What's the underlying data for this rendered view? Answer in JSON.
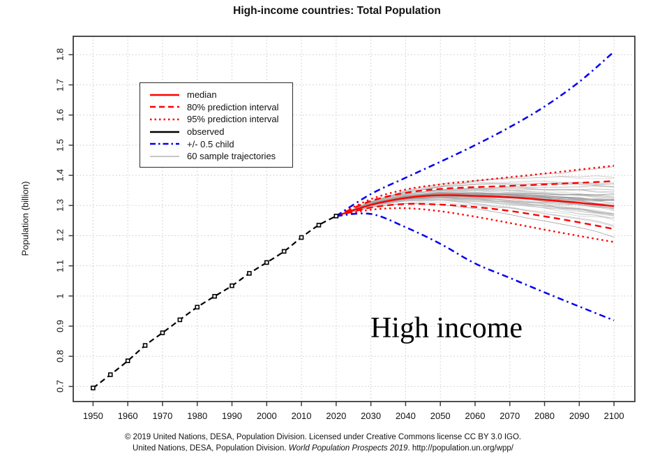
{
  "title": "High-income countries: Total Population",
  "annotation": "High income",
  "footer": {
    "line1": "© 2019 United Nations, DESA, Population Division. Licensed under Creative Commons license CC BY 3.0 IGO.",
    "line2_prefix": "United Nations, DESA, Population Division. ",
    "line2_italic": "World Population Prospects 2019",
    "line2_suffix": ". http://population.un.org/wpp/"
  },
  "legend": {
    "position": "top-left",
    "items": [
      {
        "label": "median",
        "color": "#ff0000",
        "dash": "",
        "width": 2.4
      },
      {
        "label": "80% prediction interval",
        "color": "#ff0000",
        "dash": "8,5",
        "width": 2.4
      },
      {
        "label": "95% prediction interval",
        "color": "#ff0000",
        "dash": "2.5,4",
        "width": 2.4
      },
      {
        "label": "observed",
        "color": "#000000",
        "dash": "",
        "width": 2.6
      },
      {
        "label": "+/- 0.5 child",
        "color": "#0000ee",
        "dash": "8,4,2.5,4",
        "width": 2.4
      },
      {
        "label": "60 sample trajectories",
        "color": "#b4b4b4",
        "dash": "",
        "width": 1.6
      }
    ]
  },
  "colors": {
    "median_red": "#ff0000",
    "half_child_blue": "#0000ee",
    "observed_black": "#000000",
    "trajectory_gray": "#9a9a9a",
    "grid_gray": "#c8c8c8",
    "frame_gray": "#3a3a3a"
  },
  "chart_data": {
    "type": "line",
    "title": "High-income countries: Total Population",
    "xlabel": "",
    "ylabel": "Population (billion)",
    "xlim": [
      1944.3,
      2106.0
    ],
    "ylim": [
      0.65,
      1.861
    ],
    "grid": true,
    "legend_position": "top-left",
    "x_ticks": [
      1950,
      1960,
      1970,
      1980,
      1990,
      2000,
      2010,
      2020,
      2030,
      2040,
      2050,
      2060,
      2070,
      2080,
      2090,
      2100
    ],
    "y_tick_labels": [
      "0.7",
      "0.8",
      "0.9",
      "1",
      "1.1",
      "1.2",
      "1.3",
      "1.4",
      "1.5",
      "1.6",
      "1.7",
      "1.8"
    ],
    "observed": {
      "name": "observed",
      "x_start": 1950,
      "x_step": 5,
      "values": [
        0.695,
        0.739,
        0.785,
        0.836,
        0.878,
        0.921,
        0.963,
        0.999,
        1.034,
        1.075,
        1.111,
        1.148,
        1.194,
        1.235,
        1.265
      ]
    },
    "projection_x": [
      2020,
      2030,
      2040,
      2050,
      2060,
      2070,
      2080,
      2090,
      2100
    ],
    "projection_series": [
      {
        "name": "median",
        "color": "#ff0000",
        "dash": "",
        "width": 2.4,
        "values": [
          1.265,
          1.302,
          1.325,
          1.334,
          1.332,
          1.327,
          1.319,
          1.309,
          1.298
        ]
      },
      {
        "name": "80% prediction interval upper",
        "color": "#ff0000",
        "dash": "9,6",
        "width": 2.4,
        "values": [
          1.265,
          1.315,
          1.342,
          1.355,
          1.361,
          1.365,
          1.37,
          1.375,
          1.381
        ]
      },
      {
        "name": "80% prediction interval lower",
        "color": "#ff0000",
        "dash": "9,6",
        "width": 2.4,
        "values": [
          1.265,
          1.293,
          1.305,
          1.303,
          1.295,
          1.282,
          1.264,
          1.244,
          1.222
        ]
      },
      {
        "name": "95% prediction interval upper",
        "color": "#ff0000",
        "dash": "2.5,4.5",
        "width": 2.4,
        "values": [
          1.265,
          1.321,
          1.353,
          1.37,
          1.382,
          1.394,
          1.406,
          1.419,
          1.432
        ]
      },
      {
        "name": "95% prediction interval lower",
        "color": "#ff0000",
        "dash": "2.5,4.5",
        "width": 2.4,
        "values": [
          1.265,
          1.286,
          1.291,
          1.281,
          1.263,
          1.242,
          1.22,
          1.199,
          1.179
        ]
      },
      {
        "name": "+0.5 child",
        "color": "#0000ee",
        "dash": "9,5,2.5,5",
        "width": 2.5,
        "values": [
          1.265,
          1.338,
          1.392,
          1.445,
          1.5,
          1.56,
          1.628,
          1.71,
          1.81
        ]
      },
      {
        "name": "-0.5 child",
        "color": "#0000ee",
        "dash": "9,5,2.5,5",
        "width": 2.5,
        "values": [
          1.265,
          1.272,
          1.228,
          1.173,
          1.108,
          1.06,
          1.012,
          0.965,
          0.919
        ]
      }
    ],
    "sample_trajectories": {
      "count": 60,
      "color": "#9a9a9a",
      "end_range": [
        1.16,
        1.47
      ]
    }
  }
}
